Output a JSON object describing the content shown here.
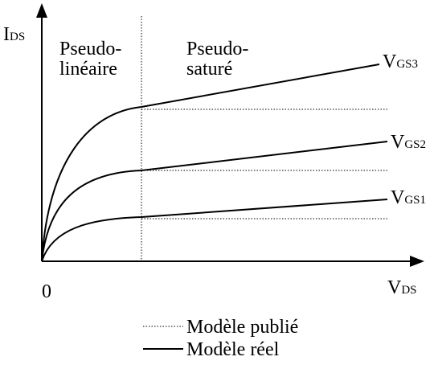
{
  "axes": {
    "y": {
      "label": "I",
      "sub": "DS"
    },
    "x": {
      "label": "V",
      "sub": "DS"
    },
    "origin": "0"
  },
  "regions": [
    {
      "line1": "Pseudo-",
      "line2": "linéaire"
    },
    {
      "line1": "Pseudo-",
      "line2": "saturé"
    }
  ],
  "curves": [
    {
      "label": "V",
      "sub": "GS3"
    },
    {
      "label": "V",
      "sub": "GS2"
    },
    {
      "label": "V",
      "sub": "GS1"
    }
  ],
  "legend": {
    "dotted": "Modèle publié",
    "solid": "Modèle réel"
  }
}
